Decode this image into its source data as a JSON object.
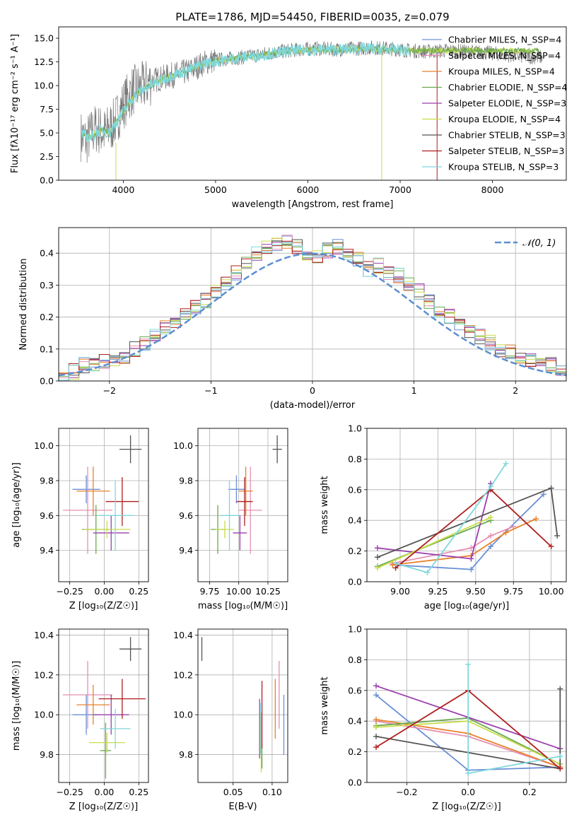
{
  "colors": {
    "chabrier_miles": "#6a8fd6",
    "salpeter_miles": "#e58fb4",
    "kroupa_miles": "#e8822a",
    "chabrier_elodie": "#6aa84f",
    "salpeter_elodie": "#9b3fae",
    "kroupa_elodie": "#c8dd4a",
    "chabrier_stelib": "#555555",
    "salpeter_stelib": "#b01e1e",
    "kroupa_stelib": "#7fd8dc",
    "spectrum": "#777777",
    "normal_curve": "#5b8fd0"
  },
  "chart_data": [
    {
      "id": "spectrum",
      "type": "line",
      "title": "PLATE=1786, MJD=54450, FIBERID=0035, z=0.079",
      "xlabel": "wavelength [Angstrom, rest frame]",
      "ylabel": "Flux [fλ10⁻¹⁷ erg cm⁻² s⁻¹ A⁻¹]",
      "xlim": [
        3300,
        8800
      ],
      "ylim": [
        0,
        16.2
      ],
      "xticks": [
        "4000",
        "5000",
        "6000",
        "7000",
        "8000"
      ],
      "yticks": [
        "0.0",
        "2.5",
        "5.0",
        "7.5",
        "10.0",
        "12.5",
        "15.0"
      ],
      "grid": false,
      "legend": "top-right",
      "legend_entries": [
        "Chabrier MILES, N_SSP=4",
        "Salpeter MILES, N_SSP=4",
        "Kroupa MILES, N_SSP=4",
        "Chabrier ELODIE, N_SSP=4",
        "Salpeter ELODIE, N_SSP=3",
        "Kroupa ELODIE, N_SSP=4",
        "Chabrier STELIB, N_SSP=3",
        "Salpeter STELIB, N_SSP=3",
        "Kroupa STELIB, N_SSP=3"
      ],
      "series": [
        {
          "name": "data",
          "x": [
            3500,
            3600,
            3700,
            3800,
            3900,
            4000,
            4100,
            4200,
            4300,
            4500,
            4700,
            4900,
            5100,
            5300,
            5500,
            5700,
            5900,
            6100,
            6300,
            6500,
            6700,
            6900,
            7100,
            7300,
            7500,
            7700,
            7900,
            8100,
            8300,
            8500
          ],
          "y": [
            5.0,
            4.2,
            5.5,
            5.0,
            6.0,
            8.0,
            9.5,
            9.8,
            10.5,
            11.0,
            11.5,
            12.5,
            12.8,
            13.0,
            13.3,
            13.6,
            13.8,
            13.9,
            13.8,
            13.9,
            14.0,
            13.9,
            13.7,
            13.6,
            13.7,
            13.6,
            13.5,
            13.3,
            13.1,
            13.0
          ]
        },
        {
          "name": "model",
          "x": [
            3550,
            3650,
            3750,
            3850,
            3950,
            4050,
            4150,
            4250,
            4350,
            4500,
            4700,
            4900,
            5100,
            5300,
            5500,
            5700,
            5900,
            6100,
            6300,
            6500,
            6700,
            6900,
            7100
          ],
          "y": [
            4.8,
            4.5,
            5.3,
            5.0,
            6.5,
            8.0,
            9.2,
            9.8,
            10.3,
            11.0,
            11.6,
            12.4,
            12.7,
            13.0,
            13.2,
            13.5,
            13.7,
            13.8,
            13.8,
            13.9,
            13.9,
            13.8,
            13.7
          ]
        }
      ]
    },
    {
      "id": "residuals",
      "type": "histogram",
      "xlabel": "(data-model)/error",
      "ylabel": "Normed distribution",
      "xlim": [
        -2.5,
        2.5
      ],
      "ylim": [
        0,
        0.48
      ],
      "xticks": [
        "−2",
        "−1",
        "0",
        "1",
        "2"
      ],
      "yticks": [
        "0.0",
        "0.1",
        "0.2",
        "0.3",
        "0.4"
      ],
      "grid": true,
      "legend": "top-right",
      "legend_label": "𝒩(0, 1)",
      "bin_width": 0.1,
      "bin_start": -2.5,
      "heights": [
        0.02,
        0.03,
        0.05,
        0.05,
        0.06,
        0.06,
        0.08,
        0.1,
        0.12,
        0.14,
        0.17,
        0.19,
        0.21,
        0.23,
        0.25,
        0.28,
        0.31,
        0.34,
        0.37,
        0.4,
        0.42,
        0.43,
        0.44,
        0.42,
        0.4,
        0.39,
        0.41,
        0.42,
        0.4,
        0.38,
        0.35,
        0.36,
        0.34,
        0.33,
        0.3,
        0.28,
        0.25,
        0.22,
        0.2,
        0.18,
        0.16,
        0.14,
        0.12,
        0.1,
        0.09,
        0.07,
        0.06,
        0.05,
        0.05,
        0.03
      ]
    },
    {
      "id": "age_vs_Z",
      "type": "scatter",
      "xlabel": "Z [log₁₀(Z/Z☉)]",
      "ylabel": "age  [log₁₀(age/yr)]",
      "xlim": [
        -0.33,
        0.32
      ],
      "ylim": [
        9.22,
        10.1
      ],
      "xticks": [
        "−0.25",
        "0.00",
        "0.25"
      ],
      "yticks": [
        "9.4",
        "9.6",
        "9.8",
        "10.0"
      ],
      "grid": true,
      "points": [
        {
          "c": "chabrier_miles",
          "x": -0.13,
          "y": 9.75,
          "xe": 0.1,
          "ye": 0.08
        },
        {
          "c": "salpeter_miles",
          "x": -0.12,
          "y": 9.63,
          "xe": 0.18,
          "ye": 0.25
        },
        {
          "c": "kroupa_miles",
          "x": -0.08,
          "y": 9.74,
          "xe": 0.12,
          "ye": 0.14
        },
        {
          "c": "chabrier_elodie",
          "x": -0.06,
          "y": 9.52,
          "xe": 0.1,
          "ye": 0.14
        },
        {
          "c": "salpeter_elodie",
          "x": 0.05,
          "y": 9.5,
          "xe": 0.13,
          "ye": 0.1
        },
        {
          "c": "kroupa_elodie",
          "x": 0.02,
          "y": 9.52,
          "xe": 0.17,
          "ye": 0.05
        },
        {
          "c": "chabrier_stelib",
          "x": 0.19,
          "y": 9.98,
          "xe": 0.08,
          "ye": 0.08
        },
        {
          "c": "salpeter_stelib",
          "x": 0.13,
          "y": 9.68,
          "xe": 0.12,
          "ye": 0.14
        },
        {
          "c": "kroupa_stelib",
          "x": 0.08,
          "y": 9.6,
          "xe": 0.13,
          "ye": 0.2
        }
      ]
    },
    {
      "id": "age_vs_mass",
      "type": "scatter",
      "xlabel": "mass [log₁₀(M/M☉)]",
      "ylabel": "",
      "xlim": [
        9.65,
        10.42
      ],
      "ylim": [
        9.22,
        10.1
      ],
      "xticks": [
        "9.75",
        "10.00",
        "10.25"
      ],
      "yticks": [
        "9.4",
        "9.6",
        "9.8",
        "10.0"
      ],
      "grid": true,
      "points": [
        {
          "c": "chabrier_miles",
          "x": 9.98,
          "y": 9.75,
          "xe": 0.07,
          "ye": 0.08
        },
        {
          "c": "salpeter_miles",
          "x": 10.1,
          "y": 9.63,
          "xe": 0.1,
          "ye": 0.25
        },
        {
          "c": "kroupa_miles",
          "x": 10.06,
          "y": 9.74,
          "xe": 0.06,
          "ye": 0.14
        },
        {
          "c": "chabrier_elodie",
          "x": 9.82,
          "y": 9.52,
          "xe": 0.06,
          "ye": 0.14
        },
        {
          "c": "salpeter_elodie",
          "x": 10.01,
          "y": 9.5,
          "xe": 0.06,
          "ye": 0.1
        },
        {
          "c": "kroupa_elodie",
          "x": 9.88,
          "y": 9.52,
          "xe": 0.08,
          "ye": 0.05
        },
        {
          "c": "chabrier_stelib",
          "x": 10.33,
          "y": 9.98,
          "xe": 0.04,
          "ye": 0.08
        },
        {
          "c": "salpeter_stelib",
          "x": 10.05,
          "y": 9.68,
          "xe": 0.07,
          "ye": 0.14
        },
        {
          "c": "kroupa_stelib",
          "x": 9.92,
          "y": 9.6,
          "xe": 0.08,
          "ye": 0.2
        }
      ]
    },
    {
      "id": "massweight_vs_age",
      "type": "line",
      "xlabel": "age  [log₁₀(age/yr)]",
      "ylabel": "mass weight",
      "xlim": [
        8.78,
        10.1
      ],
      "ylim": [
        0,
        1.0
      ],
      "xticks": [
        "9.00",
        "9.25",
        "9.50",
        "9.75",
        "10.00"
      ],
      "yticks": [
        "0.0",
        "0.2",
        "0.4",
        "0.6",
        "0.8",
        "1.0"
      ],
      "grid": true,
      "series": [
        {
          "c": "chabrier_miles",
          "x": [
            8.95,
            9.47,
            9.6,
            9.95
          ],
          "y": [
            0.11,
            0.08,
            0.23,
            0.57
          ]
        },
        {
          "c": "salpeter_miles",
          "x": [
            8.95,
            9.47,
            9.6,
            9.75
          ],
          "y": [
            0.12,
            0.22,
            0.3,
            0.36
          ]
        },
        {
          "c": "kroupa_miles",
          "x": [
            8.95,
            9.47,
            9.7,
            9.9
          ],
          "y": [
            0.11,
            0.17,
            0.32,
            0.41
          ]
        },
        {
          "c": "chabrier_elodie",
          "x": [
            8.85,
            9.6
          ],
          "y": [
            0.1,
            0.4
          ]
        },
        {
          "c": "salpeter_elodie",
          "x": [
            8.85,
            9.47,
            9.6
          ],
          "y": [
            0.22,
            0.15,
            0.64
          ]
        },
        {
          "c": "kroupa_elodie",
          "x": [
            8.85,
            9.6
          ],
          "y": [
            0.09,
            0.42
          ]
        },
        {
          "c": "chabrier_stelib",
          "x": [
            8.85,
            10.0,
            10.04
          ],
          "y": [
            0.16,
            0.61,
            0.3
          ]
        },
        {
          "c": "salpeter_stelib",
          "x": [
            8.97,
            9.6,
            10.0
          ],
          "y": [
            0.09,
            0.6,
            0.23
          ]
        },
        {
          "c": "kroupa_stelib",
          "x": [
            8.97,
            9.18,
            9.6,
            9.7
          ],
          "y": [
            0.12,
            0.06,
            0.62,
            0.77
          ]
        }
      ]
    },
    {
      "id": "mass_vs_Z",
      "type": "scatter",
      "xlabel": "Z [log₁₀(Z/Z☉)]",
      "ylabel": "mass [log₁₀(M/M☉)]",
      "xlim": [
        -0.33,
        0.32
      ],
      "ylim": [
        9.66,
        10.43
      ],
      "xticks": [
        "−0.25",
        "0.00",
        "0.25"
      ],
      "yticks": [
        "9.8",
        "10.0",
        "10.2",
        "10.4"
      ],
      "grid": true,
      "points": [
        {
          "c": "chabrier_miles",
          "x": -0.13,
          "y": 10.0,
          "xe": 0.1,
          "ye": 0.1
        },
        {
          "c": "salpeter_miles",
          "x": -0.12,
          "y": 10.1,
          "xe": 0.18,
          "ye": 0.17
        },
        {
          "c": "kroupa_miles",
          "x": -0.08,
          "y": 10.05,
          "xe": 0.12,
          "ye": 0.1
        },
        {
          "c": "chabrier_elodie",
          "x": 0.01,
          "y": 9.82,
          "xe": 0.04,
          "ye": 0.14
        },
        {
          "c": "salpeter_elodie",
          "x": 0.05,
          "y": 10.0,
          "xe": 0.13,
          "ye": 0.1
        },
        {
          "c": "kroupa_elodie",
          "x": 0.02,
          "y": 9.86,
          "xe": 0.13,
          "ye": 0.05
        },
        {
          "c": "chabrier_stelib",
          "x": 0.19,
          "y": 10.33,
          "xe": 0.08,
          "ye": 0.06
        },
        {
          "c": "salpeter_stelib",
          "x": 0.13,
          "y": 10.08,
          "xe": 0.17,
          "ye": 0.1
        },
        {
          "c": "kroupa_stelib",
          "x": 0.08,
          "y": 9.93,
          "xe": 0.11,
          "ye": 0.1
        }
      ]
    },
    {
      "id": "mass_vs_ebv",
      "type": "scatter",
      "xlabel": "E(B-V)",
      "ylabel": "",
      "xlim": [
        0.005,
        0.12
      ],
      "ylim": [
        9.66,
        10.43
      ],
      "xticks": [
        "0.05",
        "0.10"
      ],
      "yticks": [
        "9.8",
        "10.0",
        "10.2",
        "10.4"
      ],
      "grid": true,
      "points": [
        {
          "c": "chabrier_stelib",
          "x": 0.01,
          "y": 10.33,
          "xe": 0,
          "ye": 0.06
        },
        {
          "c": "salpeter_elodie",
          "x": 0.084,
          "y": 9.93,
          "xe": 0,
          "ye": 0.15
        },
        {
          "c": "kroupa_stelib",
          "x": 0.085,
          "y": 9.93,
          "xe": 0,
          "ye": 0.13
        },
        {
          "c": "kroupa_elodie",
          "x": 0.086,
          "y": 9.86,
          "xe": 0,
          "ye": 0.15
        },
        {
          "c": "salpeter_stelib",
          "x": 0.087,
          "y": 10.0,
          "xe": 0,
          "ye": 0.17
        },
        {
          "c": "chabrier_elodie",
          "x": 0.087,
          "y": 9.78,
          "xe": 0,
          "ye": 0.05
        },
        {
          "c": "kroupa_miles",
          "x": 0.104,
          "y": 10.03,
          "xe": 0,
          "ye": 0.15
        },
        {
          "c": "salpeter_miles",
          "x": 0.109,
          "y": 10.1,
          "xe": 0,
          "ye": 0.17
        },
        {
          "c": "chabrier_miles",
          "x": 0.115,
          "y": 9.95,
          "xe": 0,
          "ye": 0.15
        }
      ]
    },
    {
      "id": "massweight_vs_Z",
      "type": "line",
      "xlabel": "Z [log₁₀(Z/Z☉)]",
      "ylabel": "mass weight",
      "xlim": [
        -0.33,
        0.32
      ],
      "ylim": [
        0,
        1.0
      ],
      "xticks": [
        "−0.2",
        "0.0",
        "0.2"
      ],
      "yticks": [
        "0.0",
        "0.2",
        "0.4",
        "0.6",
        "0.8",
        "1.0"
      ],
      "grid": true,
      "series": [
        {
          "c": "chabrier_miles",
          "x": [
            -0.3,
            0.0,
            0.3
          ],
          "y": [
            0.57,
            0.08,
            0.1
          ]
        },
        {
          "c": "salpeter_miles",
          "x": [
            -0.3,
            0.0,
            0.3
          ],
          "y": [
            0.4,
            0.3,
            0.1
          ]
        },
        {
          "c": "kroupa_miles",
          "x": [
            -0.3,
            0.0,
            0.3
          ],
          "y": [
            0.41,
            0.32,
            0.1
          ]
        },
        {
          "c": "chabrier_elodie",
          "x": [
            -0.3,
            0.0,
            0.3
          ],
          "y": [
            0.37,
            0.42,
            0.12
          ]
        },
        {
          "c": "salpeter_elodie",
          "x": [
            -0.3,
            0.3
          ],
          "y": [
            0.63,
            0.22
          ]
        },
        {
          "c": "kroupa_elodie",
          "x": [
            -0.3,
            0.0,
            0.3
          ],
          "y": [
            0.36,
            0.4,
            0.12
          ]
        },
        {
          "c": "chabrier_stelib",
          "x": [
            -0.3,
            0.3,
            0.3
          ],
          "y": [
            0.3,
            0.09,
            0.61
          ]
        },
        {
          "c": "salpeter_stelib",
          "x": [
            -0.3,
            0.0,
            0.3
          ],
          "y": [
            0.23,
            0.6,
            0.09
          ]
        },
        {
          "c": "kroupa_stelib",
          "x": [
            0.0,
            0.0,
            0.3
          ],
          "y": [
            0.77,
            0.06,
            0.17
          ]
        }
      ]
    }
  ]
}
